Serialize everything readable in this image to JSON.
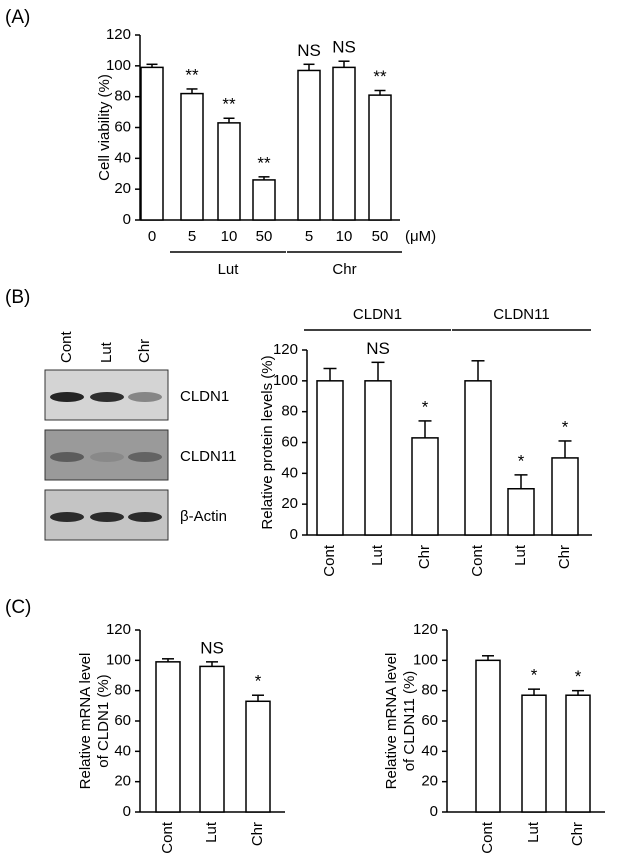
{
  "chart_data": [
    {
      "type": "bar",
      "panel": "(A)",
      "ylabel": "Cell viability  (%)",
      "unit": "(μM)",
      "categories": [
        "0",
        "5",
        "10",
        "50",
        "5",
        "10",
        "50"
      ],
      "values": [
        99,
        82,
        63,
        26,
        97,
        99,
        81
      ],
      "errors": [
        2,
        3,
        3,
        2,
        4,
        4,
        3
      ],
      "annotations": [
        null,
        "**",
        "**",
        "**",
        "NS",
        "NS",
        "**"
      ],
      "groups": [
        "Lut",
        "Chr"
      ],
      "ylim": [
        0,
        120
      ],
      "yticks": [
        0,
        20,
        40,
        60,
        80,
        100,
        120
      ],
      "grid": false,
      "color": "#ffffff"
    },
    {
      "type": "bar",
      "panel": "(B)",
      "ylabel": "Relative protein levels  (%)",
      "categories": [
        "Cont",
        "Lut",
        "Chr",
        "Cont",
        "Lut",
        "Chr"
      ],
      "values": [
        100,
        100,
        63,
        100,
        30,
        50
      ],
      "errors": [
        8,
        12,
        11,
        13,
        9,
        11
      ],
      "annotations": [
        null,
        "NS",
        "*",
        null,
        "*",
        "*"
      ],
      "groups": [
        "CLDN1",
        "CLDN11"
      ],
      "ylim": [
        0,
        120
      ],
      "yticks": [
        0,
        20,
        40,
        60,
        80,
        100,
        120
      ],
      "grid": false,
      "color": "#ffffff"
    },
    {
      "type": "bar",
      "panel": "(C)",
      "ylabel_lines": [
        "Relative mRNA level",
        "of CLDN1  (%)"
      ],
      "categories": [
        "Cont",
        "Lut",
        "Chr"
      ],
      "values": [
        99,
        96,
        73
      ],
      "errors": [
        2,
        3,
        4
      ],
      "annotations": [
        null,
        "NS",
        "*"
      ],
      "ylim": [
        0,
        120
      ],
      "yticks": [
        0,
        20,
        40,
        60,
        80,
        100,
        120
      ],
      "grid": false,
      "color": "#ffffff"
    },
    {
      "type": "bar",
      "ylabel_lines": [
        "Relative mRNA level",
        "of CLDN11  (%)"
      ],
      "categories": [
        "Cont",
        "Lut",
        "Chr"
      ],
      "values": [
        100,
        77,
        77
      ],
      "errors": [
        3,
        4,
        3
      ],
      "annotations": [
        null,
        "*",
        "*"
      ],
      "ylim": [
        0,
        120
      ],
      "yticks": [
        0,
        20,
        40,
        60,
        80,
        100,
        120
      ],
      "grid": false,
      "color": "#ffffff"
    }
  ],
  "blot": {
    "lanes": [
      "Cont",
      "Lut",
      "Chr"
    ],
    "rows": [
      "CLDN1",
      "CLDN11",
      "β-Actin"
    ]
  }
}
